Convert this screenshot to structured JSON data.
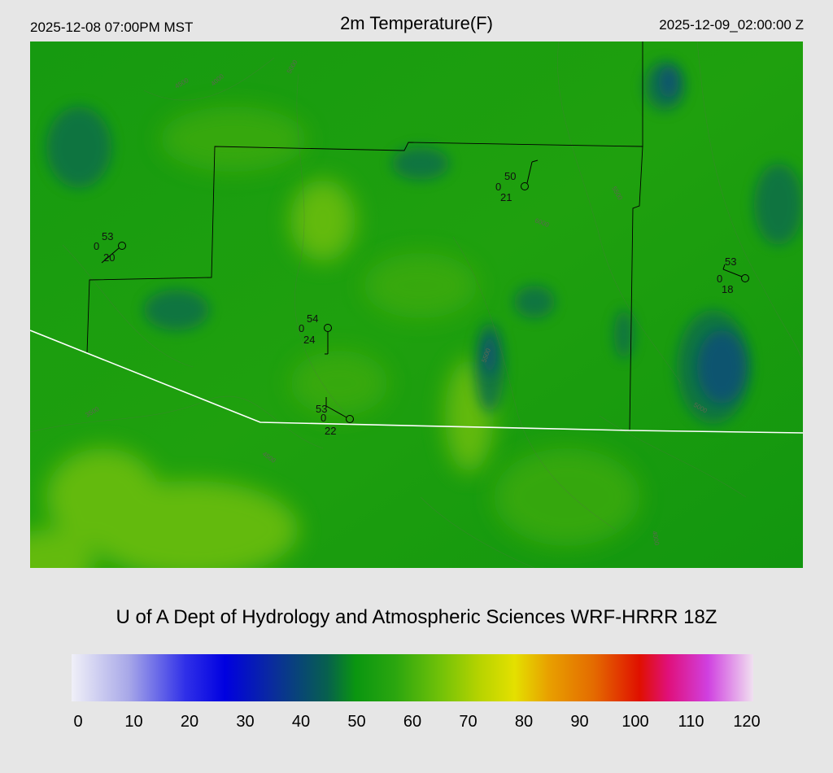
{
  "header": {
    "local_time": "2025-12-08 07:00PM MST",
    "title": "2m Temperature(F)",
    "valid_time": "2025-12-09_02:00:00 Z"
  },
  "footer": {
    "credit": "U of A Dept of Hydrology and Atmospheric Sciences WRF-HRRR 18Z"
  },
  "colorbar": {
    "ticks": [
      "0",
      "10",
      "20",
      "30",
      "40",
      "50",
      "60",
      "70",
      "80",
      "90",
      "100",
      "110",
      "120"
    ],
    "stops": [
      {
        "value": 0,
        "color": "#f0f0f8"
      },
      {
        "value": 10,
        "color": "#a8a8e8"
      },
      {
        "value": 20,
        "color": "#3030e8"
      },
      {
        "value": 27,
        "color": "#0000e0"
      },
      {
        "value": 35,
        "color": "#0a2aa0"
      },
      {
        "value": 45,
        "color": "#07604e"
      },
      {
        "value": 50,
        "color": "#0a9610"
      },
      {
        "value": 57,
        "color": "#2ba60f"
      },
      {
        "value": 65,
        "color": "#72c208"
      },
      {
        "value": 72,
        "color": "#b8d400"
      },
      {
        "value": 78,
        "color": "#e4e000"
      },
      {
        "value": 84,
        "color": "#e8a000"
      },
      {
        "value": 92,
        "color": "#e46a00"
      },
      {
        "value": 100,
        "color": "#e01000"
      },
      {
        "value": 105,
        "color": "#e0107a"
      },
      {
        "value": 112,
        "color": "#d040e0"
      },
      {
        "value": 120,
        "color": "#f0e0f0"
      }
    ]
  },
  "stations": [
    {
      "temp": "53",
      "left": "0",
      "dew": "20"
    },
    {
      "temp": "50",
      "left": "0",
      "dew": "21"
    },
    {
      "temp": "53",
      "left": "0",
      "dew": "18"
    },
    {
      "temp": "54",
      "left": "0",
      "dew": "24"
    },
    {
      "temp": "53",
      "left": "0",
      "dew": "22"
    }
  ],
  "contour_labels": [
    "4500",
    "4000",
    "5000",
    "5500",
    "6000",
    "3500",
    "4500",
    "5000",
    "4000",
    "5500"
  ],
  "colors": {
    "background": "#e6e6e6",
    "map_base": "#1fa00f",
    "boundary_white": "#ffffff",
    "boundary_black": "#000000"
  }
}
